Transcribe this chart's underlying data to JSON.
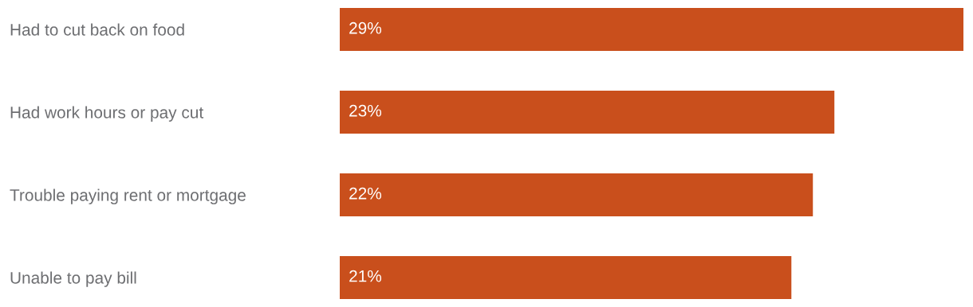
{
  "chart_data": {
    "type": "bar",
    "orientation": "horizontal",
    "relative": false,
    "categories": [
      "Had to cut back on food",
      "Had work hours or pay cut",
      "Trouble paying rent or mortgage",
      "Unable to pay bill"
    ],
    "values": [
      29,
      23,
      22,
      21
    ],
    "value_labels": [
      "29%",
      "23%",
      "22%",
      "21%"
    ],
    "color": "#c94f1c",
    "grid": false,
    "legend": false
  }
}
